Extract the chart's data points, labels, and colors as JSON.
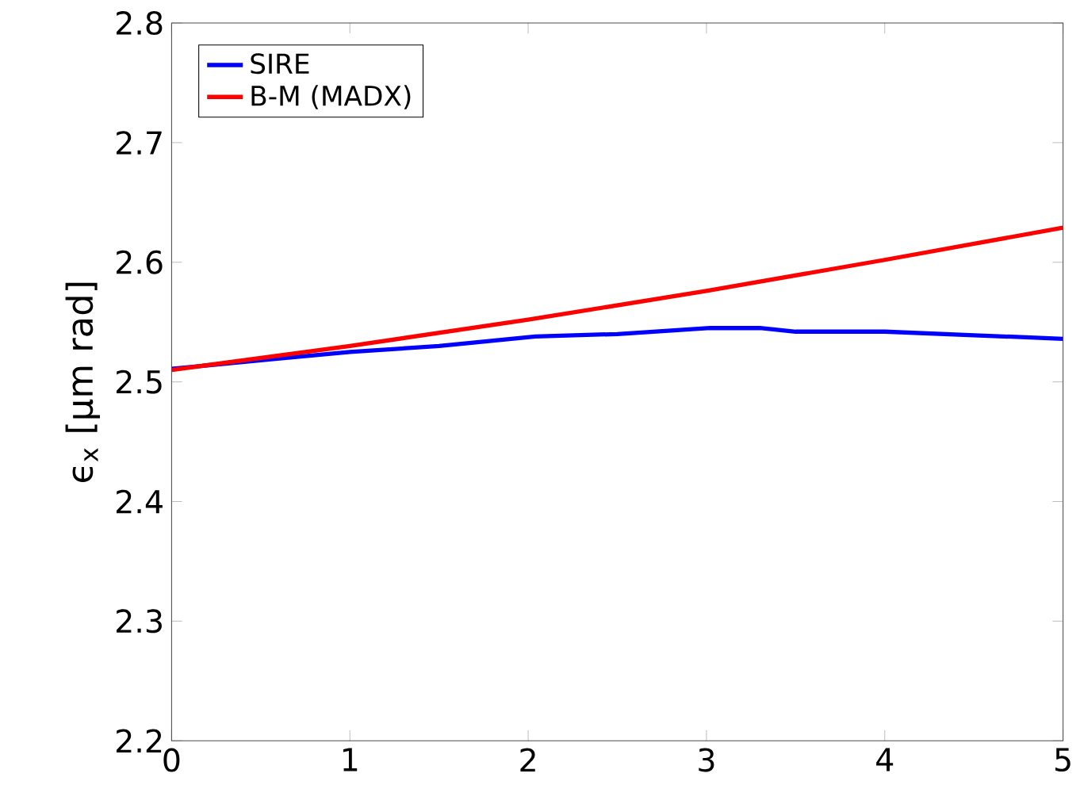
{
  "chart_data": {
    "type": "line",
    "ylabel": "ϵ$_{x}$ [μm rad]",
    "xlim": [
      0,
      5
    ],
    "xticks": [
      0,
      1,
      2,
      3,
      4,
      5
    ],
    "ylim": [
      2.2,
      2.8
    ],
    "yticks": [
      2.2,
      2.3,
      2.4,
      2.5,
      2.6,
      2.7,
      2.8
    ],
    "legend": "top left",
    "grid": false,
    "line_style": "solid",
    "marker": "none",
    "series": [
      {
        "name": "SIRE",
        "color": "#0000ff",
        "x": [
          0,
          0.57,
          1.0,
          1.5,
          2.04,
          2.5,
          3.02,
          3.3,
          3.5,
          4.0,
          4.5,
          5.0
        ],
        "values": [
          2.511,
          2.519,
          2.525,
          2.53,
          2.538,
          2.54,
          2.545,
          2.545,
          2.542,
          2.542,
          2.539,
          2.536
        ]
      },
      {
        "name": "B-M (MADX)",
        "color": "#ff0000",
        "x": [
          0,
          1,
          2,
          3,
          4,
          5
        ],
        "values": [
          2.51,
          2.53,
          2.552,
          2.576,
          2.602,
          2.629
        ]
      }
    ]
  }
}
